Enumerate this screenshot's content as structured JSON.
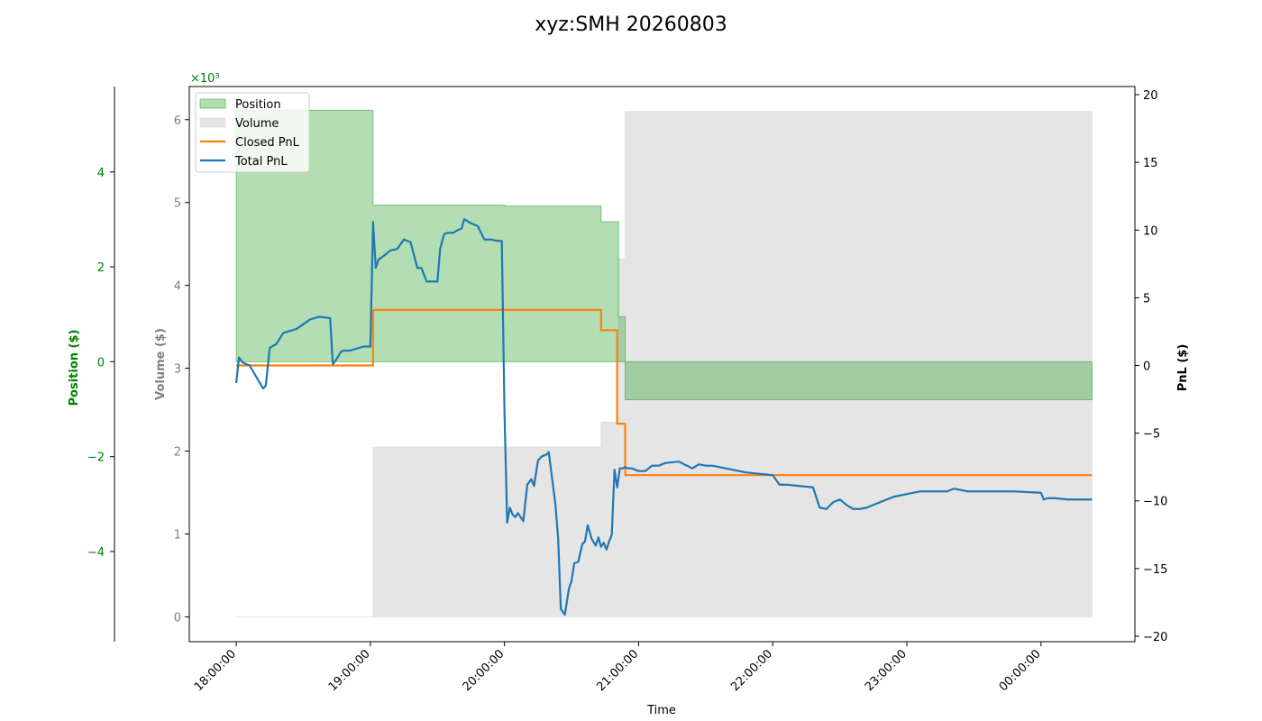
{
  "chart_data": {
    "type": "area",
    "title": "xyz:SMH 20260803",
    "xlabel": "Time",
    "x_ticks": [
      "18:00:00",
      "19:00:00",
      "20:00:00",
      "21:00:00",
      "22:00:00",
      "23:00:00",
      "00:00:00"
    ],
    "x_range_hours": [
      17.65,
      24.7
    ],
    "axes": {
      "position": {
        "label": "Position ($)",
        "color": "#008000",
        "ticks": [
          -4,
          -2,
          0,
          2,
          4
        ],
        "tick_labels": [
          "−4",
          "−2",
          "0",
          "2",
          "4"
        ],
        "range": [
          -5.9,
          5.8
        ]
      },
      "volume": {
        "label": "Volume ($)",
        "color": "#808080",
        "ticks": [
          0,
          1,
          2,
          3,
          4,
          5,
          6
        ],
        "tick_labels": [
          "0",
          "1",
          "2",
          "3",
          "4",
          "5",
          "6"
        ],
        "range": [
          -0.3,
          6.4
        ],
        "scale_label": "×10³",
        "scale_color": "#008000"
      },
      "pnl": {
        "label": "PnL ($)",
        "color": "#000000",
        "ticks": [
          -20,
          -15,
          -10,
          -5,
          0,
          5,
          10,
          15,
          20
        ],
        "tick_labels": [
          "−20",
          "−15",
          "−10",
          "−5",
          "0",
          "5",
          "10",
          "15",
          "20"
        ],
        "range": [
          -20.4,
          20.6
        ]
      }
    },
    "legend": {
      "placement": "top-left",
      "entries": [
        "Position",
        "Volume",
        "Closed PnL",
        "Total PnL"
      ]
    },
    "series": [
      {
        "name": "Position",
        "axis": "position",
        "kind": "area",
        "color": "#2ca02c",
        "x": [
          18.0,
          19.02,
          19.02,
          20.0,
          20.0,
          20.72,
          20.72,
          20.85,
          20.85,
          20.9,
          20.9,
          24.38
        ],
        "y": [
          5.3,
          5.3,
          3.3,
          3.3,
          3.28,
          3.28,
          2.95,
          2.95,
          0.95,
          0.95,
          -0.8,
          -0.8
        ]
      },
      {
        "name": "Volume",
        "axis": "volume",
        "kind": "area",
        "color": "#d3d3d3",
        "x": [
          18.0,
          19.02,
          19.02,
          20.72,
          20.72,
          20.85,
          20.85,
          20.9,
          20.9,
          24.38
        ],
        "y": [
          0.0,
          0.0,
          2.05,
          2.05,
          2.35,
          2.35,
          4.32,
          4.32,
          6.1,
          6.1
        ]
      },
      {
        "name": "Closed PnL",
        "axis": "pnl",
        "kind": "line",
        "color": "#ff7f0e",
        "x": [
          18.0,
          19.02,
          19.02,
          20.72,
          20.72,
          20.84,
          20.84,
          20.9,
          20.9,
          24.38
        ],
        "y": [
          0.0,
          0.0,
          4.1,
          4.1,
          2.6,
          2.6,
          -4.3,
          -4.3,
          -8.1,
          -8.1
        ]
      },
      {
        "name": "Total PnL",
        "axis": "pnl",
        "kind": "line",
        "color": "#1f77b4",
        "x": [
          18.0,
          18.02,
          18.05,
          18.1,
          18.2,
          18.22,
          18.25,
          18.3,
          18.35,
          18.45,
          18.55,
          18.62,
          18.7,
          18.72,
          18.75,
          18.78,
          18.8,
          18.85,
          18.95,
          19.0,
          19.02,
          19.04,
          19.06,
          19.1,
          19.15,
          19.2,
          19.25,
          19.3,
          19.35,
          19.38,
          19.42,
          19.45,
          19.5,
          19.52,
          19.55,
          19.58,
          19.62,
          19.65,
          19.68,
          19.7,
          19.75,
          19.8,
          19.85,
          19.9,
          19.95,
          19.98,
          20.0,
          20.02,
          20.04,
          20.06,
          20.08,
          20.1,
          20.14,
          20.17,
          20.2,
          20.22,
          20.25,
          20.28,
          20.31,
          20.33,
          20.38,
          20.4,
          20.42,
          20.45,
          20.48,
          20.5,
          20.52,
          20.55,
          20.58,
          20.6,
          20.62,
          20.65,
          20.68,
          20.7,
          20.72,
          20.74,
          20.76,
          20.78,
          20.8,
          20.82,
          20.84,
          20.86,
          20.88,
          20.9,
          20.92,
          20.95,
          21.0,
          21.05,
          21.1,
          21.15,
          21.2,
          21.3,
          21.4,
          21.45,
          21.5,
          21.55,
          21.6,
          21.7,
          21.8,
          21.9,
          22.0,
          22.05,
          22.1,
          22.2,
          22.3,
          22.35,
          22.4,
          22.45,
          22.5,
          22.55,
          22.6,
          22.65,
          22.7,
          22.8,
          22.9,
          23.0,
          23.1,
          23.2,
          23.3,
          23.35,
          23.4,
          23.45,
          23.5,
          23.6,
          23.8,
          24.0,
          24.02,
          24.05,
          24.1,
          24.2,
          24.38
        ],
        "y": [
          -1.3,
          0.6,
          0.2,
          0.0,
          -1.7,
          -1.5,
          1.3,
          1.6,
          2.4,
          2.7,
          3.4,
          3.6,
          3.5,
          0.1,
          0.5,
          1.0,
          1.1,
          1.1,
          1.4,
          1.4,
          10.6,
          7.2,
          7.8,
          8.1,
          8.5,
          8.6,
          9.3,
          9.1,
          7.2,
          7.2,
          6.2,
          6.2,
          6.2,
          8.6,
          9.7,
          9.8,
          9.8,
          10.0,
          10.1,
          10.8,
          10.5,
          10.3,
          9.3,
          9.3,
          9.2,
          9.2,
          -3.5,
          -11.6,
          -10.5,
          -11.0,
          -11.2,
          -10.9,
          -11.5,
          -8.8,
          -8.4,
          -8.9,
          -7.0,
          -6.7,
          -6.6,
          -6.4,
          -10.3,
          -12.8,
          -18.0,
          -18.4,
          -16.5,
          -15.9,
          -14.6,
          -14.5,
          -13.2,
          -13.0,
          -11.8,
          -12.8,
          -13.3,
          -12.7,
          -13.4,
          -13.1,
          -13.6,
          -13.0,
          -12.5,
          -7.7,
          -9.0,
          -7.6,
          -7.6,
          -7.5,
          -7.6,
          -7.6,
          -7.8,
          -7.8,
          -7.4,
          -7.4,
          -7.2,
          -7.1,
          -7.6,
          -7.3,
          -7.4,
          -7.4,
          -7.5,
          -7.7,
          -7.9,
          -8.0,
          -8.1,
          -8.8,
          -8.8,
          -8.9,
          -9.0,
          -10.5,
          -10.6,
          -10.1,
          -9.9,
          -10.3,
          -10.6,
          -10.6,
          -10.5,
          -10.1,
          -9.7,
          -9.5,
          -9.3,
          -9.3,
          -9.3,
          -9.1,
          -9.2,
          -9.3,
          -9.3,
          -9.3,
          -9.3,
          -9.4,
          -9.9,
          -9.8,
          -9.8,
          -9.9,
          -9.9
        ]
      }
    ]
  }
}
